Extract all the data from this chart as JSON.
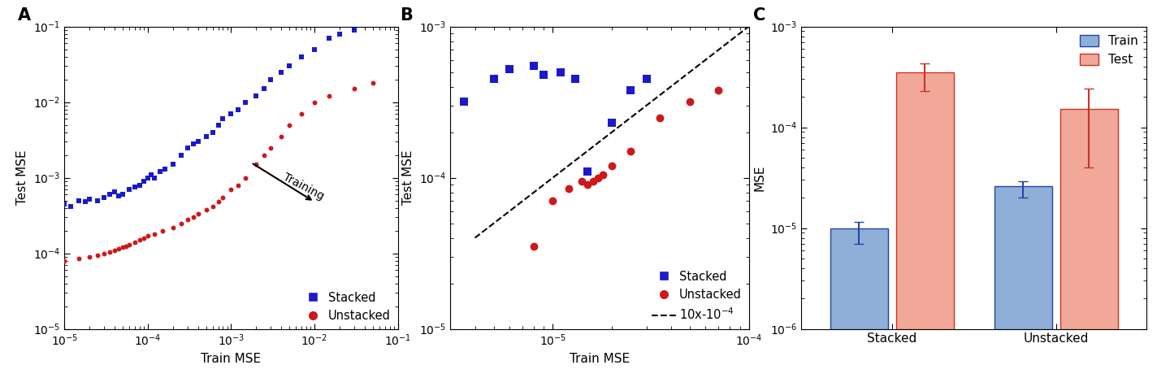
{
  "panel_A": {
    "label": "A",
    "stacked_train": [
      1e-05,
      1.2e-05,
      1.5e-05,
      1.8e-05,
      2e-05,
      2.5e-05,
      3e-05,
      3.5e-05,
      4e-05,
      4.5e-05,
      5e-05,
      6e-05,
      7e-05,
      8e-05,
      9e-05,
      0.0001,
      0.00011,
      0.00012,
      0.00014,
      0.00016,
      0.0002,
      0.00025,
      0.0003,
      0.00035,
      0.0004,
      0.0005,
      0.0006,
      0.0007,
      0.0008,
      0.001,
      0.0012,
      0.0015,
      0.002,
      0.0025,
      0.003,
      0.004,
      0.005,
      0.007,
      0.01,
      0.015,
      0.02,
      0.03
    ],
    "stacked_test": [
      0.00045,
      0.00042,
      0.0005,
      0.00048,
      0.00052,
      0.0005,
      0.00055,
      0.0006,
      0.00065,
      0.00058,
      0.0006,
      0.0007,
      0.00075,
      0.0008,
      0.0009,
      0.001,
      0.0011,
      0.001,
      0.0012,
      0.0013,
      0.0015,
      0.002,
      0.0025,
      0.0028,
      0.003,
      0.0035,
      0.004,
      0.005,
      0.006,
      0.007,
      0.008,
      0.01,
      0.012,
      0.015,
      0.02,
      0.025,
      0.03,
      0.04,
      0.05,
      0.07,
      0.08,
      0.09
    ],
    "unstacked_train": [
      1e-05,
      1.5e-05,
      2e-05,
      2.5e-05,
      3e-05,
      3.5e-05,
      4e-05,
      4.5e-05,
      5e-05,
      5.5e-05,
      6e-05,
      7e-05,
      8e-05,
      9e-05,
      0.0001,
      0.00012,
      0.00015,
      0.0002,
      0.00025,
      0.0003,
      0.00035,
      0.0004,
      0.0005,
      0.0006,
      0.0007,
      0.0008,
      0.001,
      0.0012,
      0.0015,
      0.002,
      0.0025,
      0.003,
      0.004,
      0.005,
      0.007,
      0.01,
      0.015,
      0.03,
      0.05
    ],
    "unstacked_test": [
      8e-05,
      8.5e-05,
      9e-05,
      9.5e-05,
      0.0001,
      0.000105,
      0.00011,
      0.000115,
      0.00012,
      0.000125,
      0.00013,
      0.00014,
      0.00015,
      0.00016,
      0.00017,
      0.00018,
      0.0002,
      0.00022,
      0.00025,
      0.00028,
      0.0003,
      0.00033,
      0.00038,
      0.00042,
      0.00048,
      0.00055,
      0.0007,
      0.0008,
      0.001,
      0.0015,
      0.002,
      0.0025,
      0.0035,
      0.005,
      0.007,
      0.01,
      0.012,
      0.015,
      0.018
    ],
    "xlabel": "Train MSE",
    "ylabel": "Test MSE",
    "xlim": [
      1e-05,
      0.1
    ],
    "ylim": [
      1e-05,
      0.1
    ]
  },
  "panel_B": {
    "label": "B",
    "stacked_train": [
      3.5e-06,
      5e-06,
      6e-06,
      8e-06,
      9e-06,
      1.1e-05,
      1.3e-05,
      1.5e-05,
      2e-05,
      2.5e-05,
      3e-05
    ],
    "stacked_test": [
      0.00032,
      0.00045,
      0.00052,
      0.00055,
      0.00048,
      0.0005,
      0.00045,
      0.00011,
      0.00023,
      0.00038,
      0.00045
    ],
    "unstacked_train": [
      8e-06,
      1e-05,
      1.2e-05,
      1.4e-05,
      1.5e-05,
      1.6e-05,
      1.7e-05,
      1.8e-05,
      2e-05,
      2.5e-05,
      3.5e-05,
      5e-05,
      7e-05
    ],
    "unstacked_test": [
      3.5e-05,
      7e-05,
      8.5e-05,
      9.5e-05,
      9e-05,
      9.5e-05,
      0.0001,
      0.000105,
      0.00012,
      0.00015,
      0.00025,
      0.00032,
      0.00038
    ],
    "xlabel": "Train MSE",
    "ylabel": "Test MSE",
    "xlim": [
      3e-06,
      0.0001
    ],
    "ylim": [
      1e-05,
      0.001
    ]
  },
  "panel_C": {
    "label": "C",
    "categories": [
      "Stacked",
      "Unstacked"
    ],
    "train_mean": [
      9e-06,
      2.5e-05
    ],
    "train_err_lo": [
      2e-06,
      5e-06
    ],
    "train_err_hi": [
      2.5e-06,
      4e-06
    ],
    "test_mean": [
      0.00035,
      0.00015
    ],
    "test_err_lo": [
      0.00012,
      0.00011
    ],
    "test_err_hi": [
      8e-05,
      9e-05
    ],
    "ylabel": "MSE",
    "ylim": [
      1e-06,
      0.001
    ],
    "train_color": "#8fafd8",
    "train_edge": "#2244aa",
    "test_color": "#f2a898",
    "test_edge": "#cc3322"
  },
  "stacked_color": "#1a1acc",
  "unstacked_color": "#cc1a1a"
}
